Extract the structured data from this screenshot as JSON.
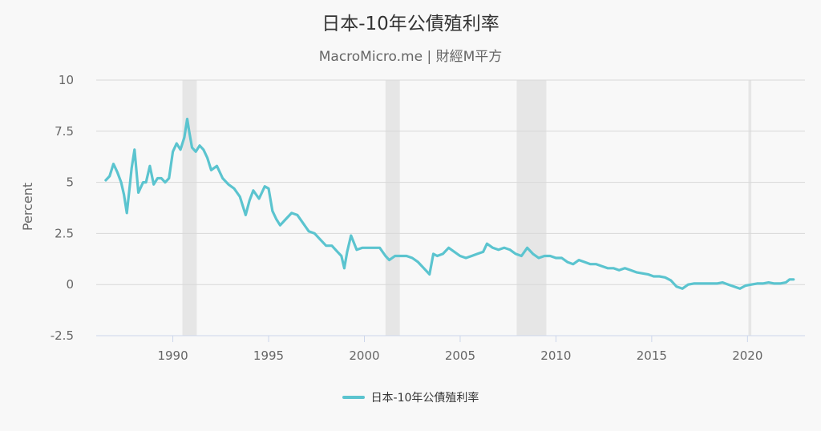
{
  "chart_data": {
    "type": "line",
    "title": "日本-10年公債殖利率",
    "subtitle": "MacroMicro.me | 財經M平方",
    "ylabel": "Percent",
    "xlabel": "",
    "xlim": [
      1986.0,
      2023.0
    ],
    "ylim": [
      -2.5,
      10
    ],
    "yticks": [
      -2.5,
      0,
      2.5,
      5,
      7.5,
      10
    ],
    "ytick_labels": [
      "-2.5",
      "0",
      "2.5",
      "5",
      "7.5",
      "10"
    ],
    "xticks": [
      1990,
      1995,
      2000,
      2005,
      2010,
      2015,
      2020
    ],
    "xtick_labels": [
      "1990",
      "1995",
      "2000",
      "2005",
      "2010",
      "2015",
      "2020"
    ],
    "grid": "horizontal",
    "legend_position": "bottom-center",
    "shaded_periods": [
      [
        1990.5,
        1991.25
      ],
      [
        2001.1,
        2001.85
      ],
      [
        2007.95,
        2009.5
      ],
      [
        2020.05,
        2020.2
      ]
    ],
    "series": [
      {
        "name": "日本-10年公債殖利率",
        "color": "#5bc4cf",
        "x": [
          1986.5,
          1986.7,
          1986.9,
          1987.1,
          1987.3,
          1987.45,
          1987.6,
          1987.75,
          1987.85,
          1988.0,
          1988.2,
          1988.45,
          1988.6,
          1988.8,
          1989.0,
          1989.2,
          1989.4,
          1989.6,
          1989.8,
          1990.0,
          1990.2,
          1990.4,
          1990.6,
          1990.75,
          1990.85,
          1991.0,
          1991.2,
          1991.4,
          1991.6,
          1991.8,
          1992.0,
          1992.3,
          1992.6,
          1992.9,
          1993.2,
          1993.5,
          1993.8,
          1994.0,
          1994.2,
          1994.5,
          1994.8,
          1995.0,
          1995.2,
          1995.4,
          1995.6,
          1995.9,
          1996.2,
          1996.5,
          1996.8,
          1997.1,
          1997.4,
          1997.7,
          1998.0,
          1998.3,
          1998.6,
          1998.8,
          1998.95,
          1999.1,
          1999.3,
          1999.6,
          1999.9,
          2000.2,
          2000.5,
          2000.8,
          2001.1,
          2001.3,
          2001.6,
          2001.9,
          2002.2,
          2002.5,
          2002.8,
          2003.1,
          2003.4,
          2003.6,
          2003.8,
          2004.1,
          2004.4,
          2004.7,
          2005.0,
          2005.3,
          2005.6,
          2005.9,
          2006.2,
          2006.4,
          2006.7,
          2007.0,
          2007.3,
          2007.6,
          2007.9,
          2008.2,
          2008.5,
          2008.8,
          2009.1,
          2009.4,
          2009.7,
          2010.0,
          2010.3,
          2010.6,
          2010.9,
          2011.2,
          2011.5,
          2011.8,
          2012.1,
          2012.4,
          2012.7,
          2013.0,
          2013.3,
          2013.6,
          2013.9,
          2014.2,
          2014.5,
          2014.8,
          2015.1,
          2015.4,
          2015.7,
          2016.0,
          2016.3,
          2016.6,
          2016.9,
          2017.2,
          2017.5,
          2017.8,
          2018.1,
          2018.4,
          2018.7,
          2019.0,
          2019.3,
          2019.6,
          2019.9,
          2020.2,
          2020.5,
          2020.8,
          2021.1,
          2021.4,
          2021.7,
          2022.0,
          2022.2,
          2022.4
        ],
        "y": [
          5.1,
          5.3,
          5.9,
          5.5,
          5.0,
          4.4,
          3.5,
          4.8,
          5.7,
          6.6,
          4.5,
          5.0,
          5.0,
          5.8,
          4.9,
          5.2,
          5.2,
          5.0,
          5.2,
          6.5,
          6.9,
          6.6,
          7.2,
          8.1,
          7.5,
          6.7,
          6.5,
          6.8,
          6.6,
          6.2,
          5.6,
          5.8,
          5.2,
          4.9,
          4.7,
          4.3,
          3.4,
          4.1,
          4.6,
          4.2,
          4.8,
          4.7,
          3.6,
          3.2,
          2.9,
          3.2,
          3.5,
          3.4,
          3.0,
          2.6,
          2.5,
          2.2,
          1.9,
          1.9,
          1.6,
          1.4,
          0.8,
          1.6,
          2.4,
          1.7,
          1.8,
          1.8,
          1.8,
          1.8,
          1.4,
          1.2,
          1.4,
          1.4,
          1.4,
          1.3,
          1.1,
          0.8,
          0.5,
          1.5,
          1.4,
          1.5,
          1.8,
          1.6,
          1.4,
          1.3,
          1.4,
          1.5,
          1.6,
          2.0,
          1.8,
          1.7,
          1.8,
          1.7,
          1.5,
          1.4,
          1.8,
          1.5,
          1.3,
          1.4,
          1.4,
          1.3,
          1.3,
          1.1,
          1.0,
          1.2,
          1.1,
          1.0,
          1.0,
          0.9,
          0.8,
          0.8,
          0.7,
          0.8,
          0.7,
          0.6,
          0.55,
          0.5,
          0.4,
          0.4,
          0.35,
          0.2,
          -0.1,
          -0.2,
          0.0,
          0.05,
          0.05,
          0.05,
          0.05,
          0.05,
          0.1,
          0.0,
          -0.1,
          -0.2,
          -0.05,
          0.0,
          0.05,
          0.05,
          0.1,
          0.05,
          0.05,
          0.1,
          0.25,
          0.25
        ]
      }
    ]
  }
}
